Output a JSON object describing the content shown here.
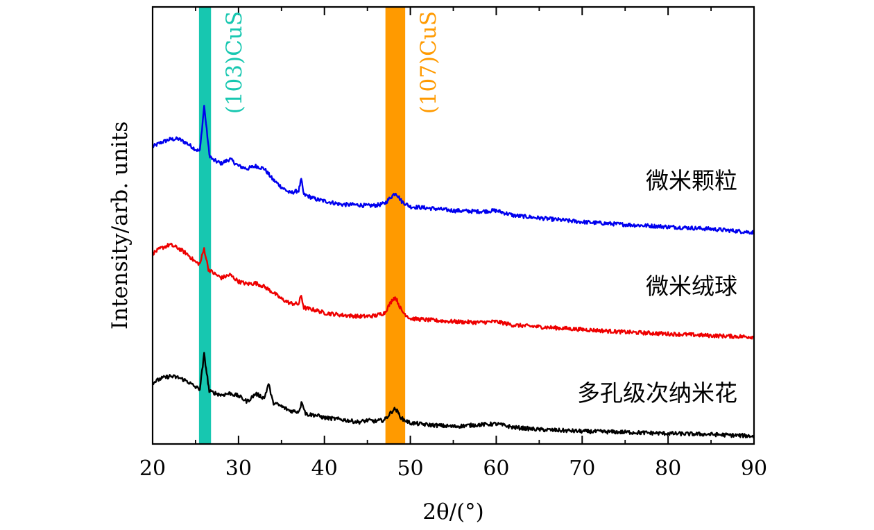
{
  "chart_data": {
    "type": "line",
    "title": "",
    "xlabel": "2θ/(°)",
    "ylabel": "Intensity/arb. units",
    "xlim": [
      20,
      90
    ],
    "ylim": [
      0,
      10
    ],
    "x_ticks": [
      "20",
      "30",
      "40",
      "50",
      "60",
      "70",
      "80",
      "90"
    ],
    "bands": [
      {
        "label": "(103)CuS",
        "x_start": 25.4,
        "x_end": 26.8,
        "color": "#17c7b0"
      },
      {
        "label": "(107)CuS",
        "x_start": 47.1,
        "x_end": 49.4,
        "color": "#ff9a00"
      }
    ],
    "series": [
      {
        "name": "微米颗粒",
        "color": "#0000ee",
        "points": [
          [
            20,
            6.8
          ],
          [
            21,
            6.9
          ],
          [
            22,
            6.97
          ],
          [
            23,
            6.98
          ],
          [
            24,
            6.88
          ],
          [
            25,
            6.74
          ],
          [
            25.5,
            6.7
          ],
          [
            26.0,
            7.74
          ],
          [
            26.6,
            6.62
          ],
          [
            27,
            6.5
          ],
          [
            28,
            6.42
          ],
          [
            29,
            6.52
          ],
          [
            30,
            6.36
          ],
          [
            31,
            6.3
          ],
          [
            32,
            6.36
          ],
          [
            33,
            6.3
          ],
          [
            34,
            6.05
          ],
          [
            35,
            5.88
          ],
          [
            36,
            5.74
          ],
          [
            37,
            5.8
          ],
          [
            37.3,
            6.05
          ],
          [
            37.6,
            5.7
          ],
          [
            38,
            5.68
          ],
          [
            39,
            5.6
          ],
          [
            40,
            5.56
          ],
          [
            42,
            5.48
          ],
          [
            44,
            5.47
          ],
          [
            45,
            5.45
          ],
          [
            46,
            5.46
          ],
          [
            47,
            5.5
          ],
          [
            48,
            5.7
          ],
          [
            48.3,
            5.75
          ],
          [
            49,
            5.55
          ],
          [
            50,
            5.43
          ],
          [
            52,
            5.4
          ],
          [
            55,
            5.34
          ],
          [
            58,
            5.32
          ],
          [
            60,
            5.34
          ],
          [
            62,
            5.23
          ],
          [
            65,
            5.17
          ],
          [
            70,
            5.08
          ],
          [
            75,
            5.02
          ],
          [
            80,
            4.97
          ],
          [
            85,
            4.92
          ],
          [
            90,
            4.84
          ]
        ]
      },
      {
        "name": "微米绒球",
        "color": "#ee0000",
        "points": [
          [
            20,
            4.36
          ],
          [
            21,
            4.48
          ],
          [
            22,
            4.56
          ],
          [
            23,
            4.48
          ],
          [
            24,
            4.35
          ],
          [
            25,
            4.16
          ],
          [
            25.5,
            4.12
          ],
          [
            26.0,
            4.47
          ],
          [
            26.5,
            4.0
          ],
          [
            27,
            3.92
          ],
          [
            28,
            3.8
          ],
          [
            29,
            3.87
          ],
          [
            30,
            3.72
          ],
          [
            31,
            3.66
          ],
          [
            32,
            3.68
          ],
          [
            33,
            3.6
          ],
          [
            34,
            3.47
          ],
          [
            35,
            3.32
          ],
          [
            36,
            3.22
          ],
          [
            37,
            3.2
          ],
          [
            37.3,
            3.4
          ],
          [
            37.6,
            3.12
          ],
          [
            38,
            3.1
          ],
          [
            39,
            3.06
          ],
          [
            40,
            3.0
          ],
          [
            42,
            2.95
          ],
          [
            44,
            2.92
          ],
          [
            45,
            2.92
          ],
          [
            46,
            2.94
          ],
          [
            47,
            3.0
          ],
          [
            48,
            3.33
          ],
          [
            48.3,
            3.35
          ],
          [
            49,
            3.04
          ],
          [
            50,
            2.87
          ],
          [
            52,
            2.84
          ],
          [
            55,
            2.8
          ],
          [
            58,
            2.78
          ],
          [
            60,
            2.8
          ],
          [
            62,
            2.72
          ],
          [
            65,
            2.68
          ],
          [
            70,
            2.62
          ],
          [
            75,
            2.56
          ],
          [
            80,
            2.52
          ],
          [
            85,
            2.48
          ],
          [
            90,
            2.45
          ]
        ]
      },
      {
        "name": "多孔级次纳米花",
        "color": "#000000",
        "points": [
          [
            20,
            1.4
          ],
          [
            21,
            1.5
          ],
          [
            22,
            1.55
          ],
          [
            23,
            1.52
          ],
          [
            24,
            1.44
          ],
          [
            25,
            1.3
          ],
          [
            25.5,
            1.26
          ],
          [
            26.0,
            2.05
          ],
          [
            26.6,
            1.2
          ],
          [
            27,
            1.18
          ],
          [
            28,
            1.12
          ],
          [
            29,
            1.16
          ],
          [
            30,
            1.1
          ],
          [
            31,
            0.97
          ],
          [
            32,
            1.15
          ],
          [
            33,
            1.05
          ],
          [
            33.5,
            1.38
          ],
          [
            34,
            0.95
          ],
          [
            35,
            0.86
          ],
          [
            36,
            0.76
          ],
          [
            37,
            0.74
          ],
          [
            37.4,
            0.97
          ],
          [
            37.8,
            0.7
          ],
          [
            38,
            0.68
          ],
          [
            39,
            0.66
          ],
          [
            40,
            0.6
          ],
          [
            42,
            0.56
          ],
          [
            44,
            0.5
          ],
          [
            45,
            0.54
          ],
          [
            46,
            0.52
          ],
          [
            47,
            0.55
          ],
          [
            48,
            0.78
          ],
          [
            48.3,
            0.8
          ],
          [
            49,
            0.58
          ],
          [
            50,
            0.48
          ],
          [
            52,
            0.44
          ],
          [
            55,
            0.4
          ],
          [
            58,
            0.44
          ],
          [
            60,
            0.46
          ],
          [
            62,
            0.38
          ],
          [
            65,
            0.33
          ],
          [
            70,
            0.29
          ],
          [
            75,
            0.27
          ],
          [
            80,
            0.24
          ],
          [
            85,
            0.22
          ],
          [
            90,
            0.18
          ]
        ]
      }
    ]
  }
}
